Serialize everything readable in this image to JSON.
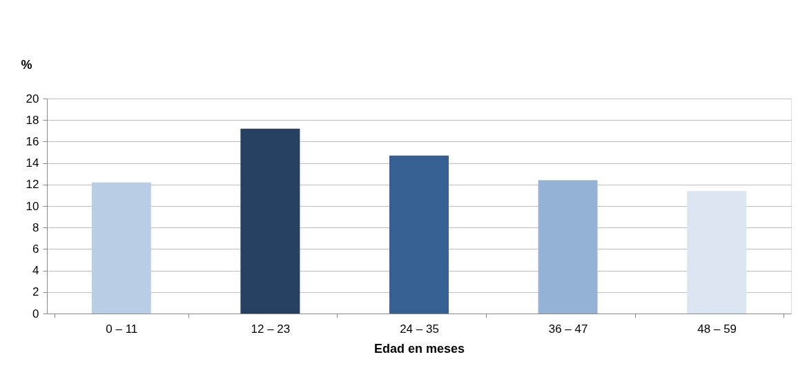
{
  "chart_data": {
    "type": "bar",
    "xlabel": "Edad en meses",
    "ylabel": "%",
    "categories": [
      "0 – 11",
      "12 – 23",
      "24 – 35",
      "36 – 47",
      "48 – 59"
    ],
    "values": [
      12.2,
      17.2,
      14.7,
      12.4,
      11.4
    ],
    "colors": [
      "#b9cde5",
      "#254061",
      "#376092",
      "#95b3d7",
      "#dce6f2"
    ],
    "ylim": [
      0,
      20
    ],
    "yticks": [
      0,
      2,
      4,
      6,
      8,
      10,
      12,
      14,
      16,
      18,
      20
    ],
    "grid": "y"
  }
}
